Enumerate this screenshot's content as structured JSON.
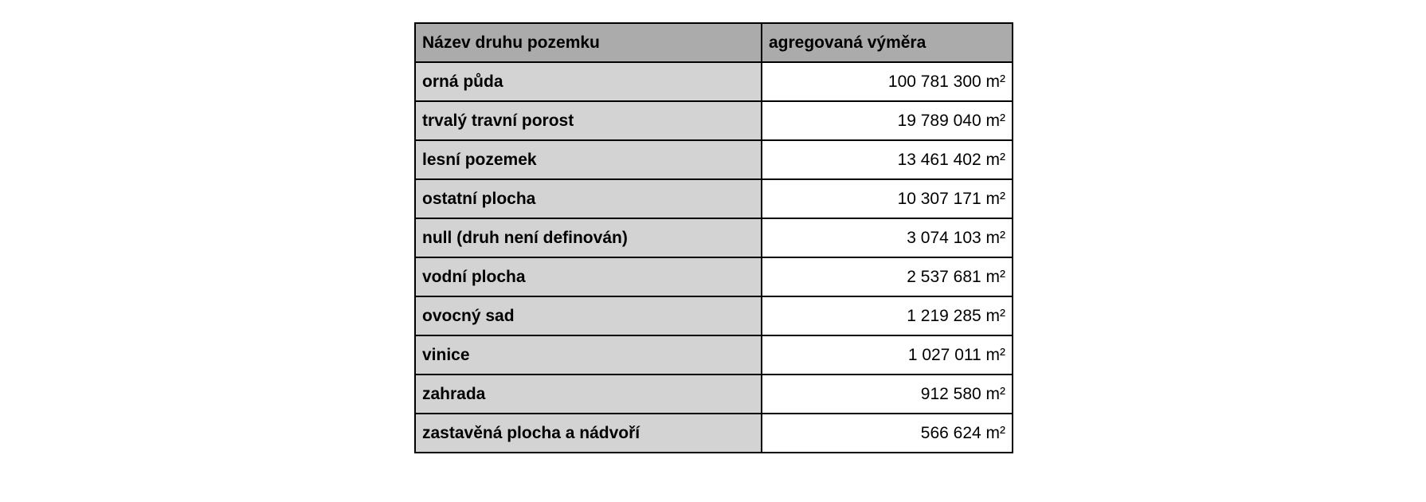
{
  "table": {
    "columns": [
      {
        "label": "Název druhu pozemku"
      },
      {
        "label": "agregovaná výměra"
      }
    ],
    "rows": [
      {
        "label": "orná půda",
        "value": "100 781 300 m²"
      },
      {
        "label": "trvalý travní porost",
        "value": "19 789 040 m²"
      },
      {
        "label": "lesní pozemek",
        "value": "13 461 402 m²"
      },
      {
        "label": "ostatní plocha",
        "value": "10 307 171 m²"
      },
      {
        "label": "null (druh není definován)",
        "value": "3 074 103 m²"
      },
      {
        "label": "vodní plocha",
        "value": "2 537 681 m²"
      },
      {
        "label": "ovocný sad",
        "value": "1 219 285 m²"
      },
      {
        "label": "vinice",
        "value": "1 027 011 m²"
      },
      {
        "label": "zahrada",
        "value": "912 580 m²"
      },
      {
        "label": "zastavěná plocha a nádvoří",
        "value": "566 624 m²"
      }
    ],
    "colors": {
      "header_bg": "#ababab",
      "label_cell_bg": "#d3d3d3",
      "value_cell_bg": "#ffffff",
      "border": "#000000",
      "text": "#000000"
    }
  },
  "chart_data": {
    "type": "table",
    "title": "",
    "columns": [
      "Název druhu pozemku",
      "agregovaná výměra"
    ],
    "unit": "m²",
    "rows": [
      [
        "orná půda",
        100781300
      ],
      [
        "trvalý travní porost",
        19789040
      ],
      [
        "lesní pozemek",
        13461402
      ],
      [
        "ostatní plocha",
        10307171
      ],
      [
        "null (druh není definován)",
        3074103
      ],
      [
        "vodní plocha",
        2537681
      ],
      [
        "ovocný sad",
        1219285
      ],
      [
        "vinice",
        1027011
      ],
      [
        "zahrada",
        912580
      ],
      [
        "zastavěná plocha a nádvoří",
        566624
      ]
    ]
  }
}
